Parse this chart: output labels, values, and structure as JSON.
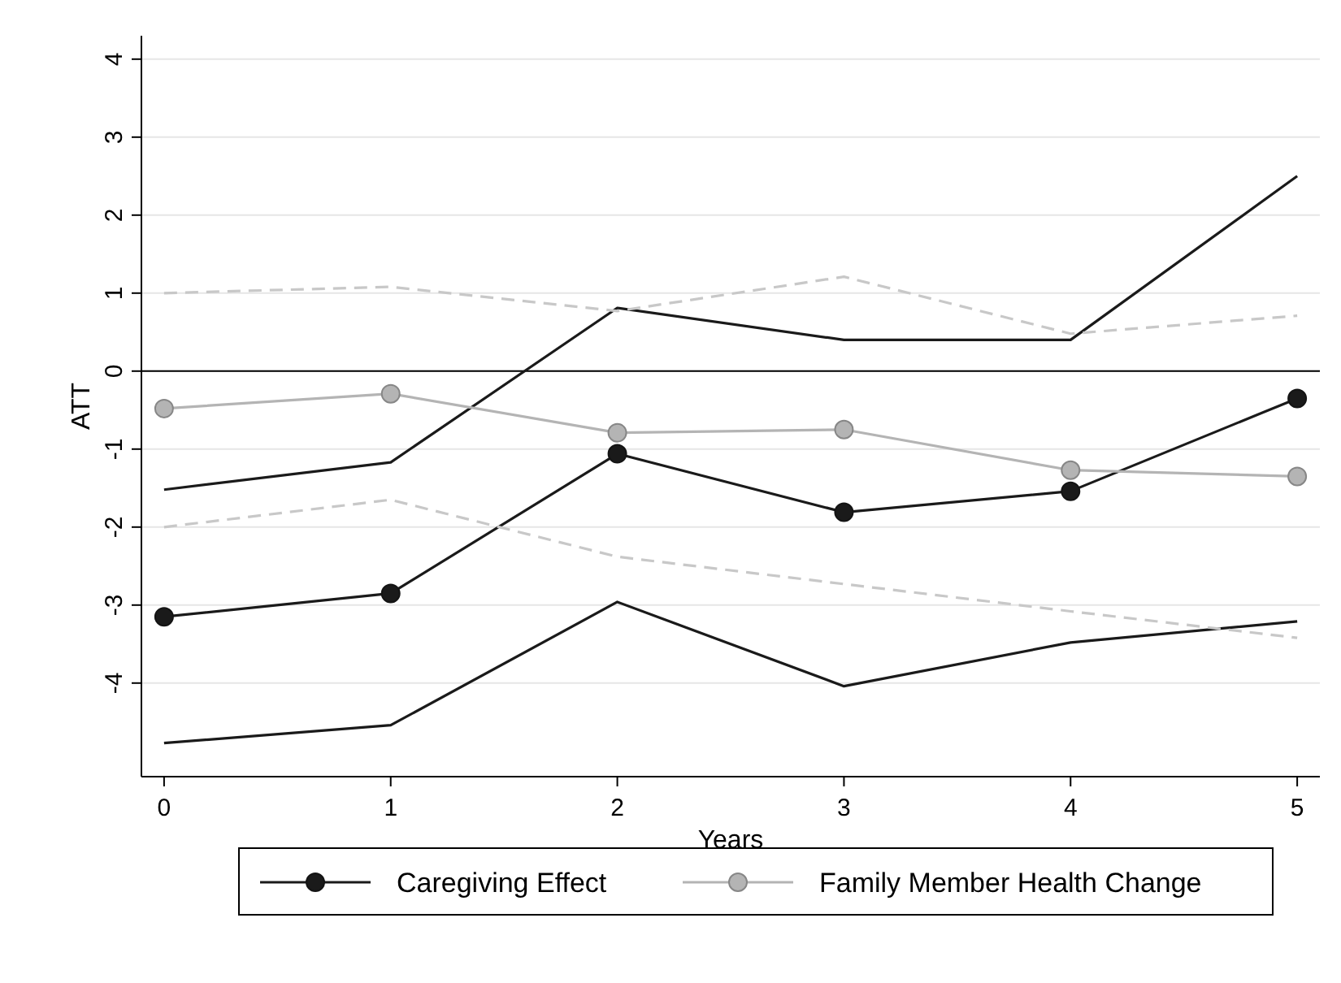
{
  "chart_data": {
    "type": "line",
    "xlabel": "Years",
    "ylabel": "ATT",
    "x": [
      0,
      1,
      2,
      3,
      4,
      5
    ],
    "series": [
      {
        "name": "Caregiving Effect",
        "color": "#1a1a1a",
        "marker": "circle",
        "line_style": "solid",
        "values": [
          -3.15,
          -2.85,
          -1.06,
          -1.81,
          -1.54,
          -0.35
        ]
      },
      {
        "color": "#1a1a1a",
        "marker": "none",
        "line_style": "solid",
        "values": [
          -1.52,
          -1.17,
          0.81,
          0.4,
          0.4,
          2.5
        ]
      },
      {
        "color": "#1a1a1a",
        "marker": "none",
        "line_style": "solid",
        "values": [
          -4.77,
          -4.54,
          -2.96,
          -4.04,
          -3.48,
          -3.21
        ]
      },
      {
        "name": "Family Member Health Change",
        "color": "#b4b4b4",
        "marker": "circle",
        "line_style": "solid",
        "values": [
          -0.48,
          -0.29,
          -0.79,
          -0.75,
          -1.27,
          -1.35
        ]
      },
      {
        "color": "#c8c8c8",
        "marker": "none",
        "line_style": "dashed",
        "values": [
          1.0,
          1.08,
          0.77,
          1.21,
          0.48,
          0.71
        ]
      },
      {
        "color": "#c8c8c8",
        "marker": "none",
        "line_style": "dashed",
        "values": [
          -2.0,
          -1.65,
          -2.38,
          -2.73,
          -3.08,
          -3.42
        ]
      }
    ],
    "xlim": [
      -0.1,
      5.1
    ],
    "ylim": [
      -5.2,
      4.3
    ],
    "xticks": [
      0,
      1,
      2,
      3,
      4,
      5
    ],
    "yticks": [
      -4,
      -3,
      -2,
      -1,
      0,
      1,
      2,
      3,
      4
    ],
    "grid": "y",
    "legend": "bottom",
    "ref_lines": [
      {
        "axis": "y",
        "value": 0,
        "color": "#000000"
      }
    ]
  }
}
